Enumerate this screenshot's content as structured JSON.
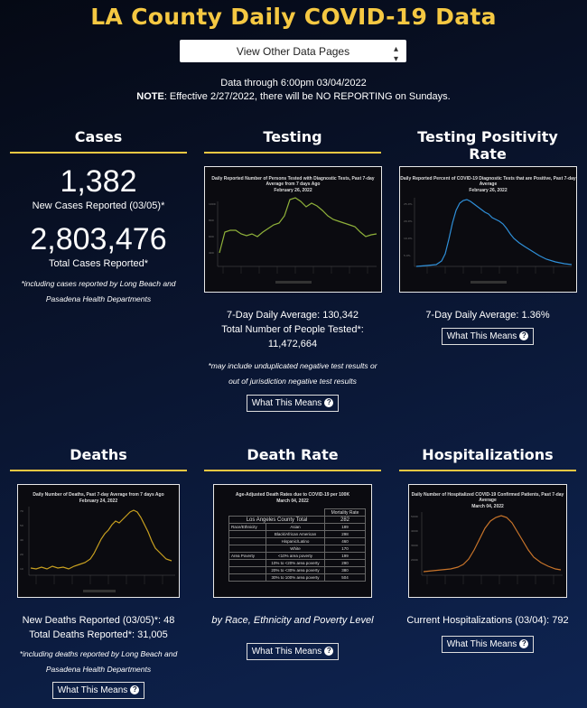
{
  "page": {
    "title": "LA County Daily COVID-19 Data",
    "select_label": "View Other Data Pages",
    "data_through": "Data through 6:00pm 03/04/2022",
    "note_label": "NOTE",
    "note_text": ": Effective 2/27/2022, there will be NO REPORTING on Sundays."
  },
  "cases": {
    "heading": "Cases",
    "new_value": "1,382",
    "new_label": "New Cases Reported (03/05)*",
    "total_value": "2,803,476",
    "total_label": "Total Cases Reported*",
    "footnote": "*including cases reported by Long Beach and Pasadena Health Departments"
  },
  "testing": {
    "heading": "Testing",
    "chart_title": "Daily Reported Number of Persons Tested with Diagnostic Tests, Past 7-day Average from 7 days Ago",
    "chart_date": "February 26, 2022",
    "avg": "7-Day Daily Average: 130,342",
    "total": "Total Number of People Tested*: 11,472,664",
    "footnote": "*may include unduplicated negative test results or out of jurisdiction negative test results",
    "button": "What This Means",
    "line_color": "#8fb13a"
  },
  "positivity": {
    "heading": "Testing Positivity Rate",
    "chart_title": "Daily Reported Percent of COVID-19 Diagnostic Tests that are Positive, Past 7-day Average",
    "chart_date": "February 26, 2022",
    "avg": "7-Day Daily Average: 1.36%",
    "button": "What This Means",
    "line_color": "#2f8fd8"
  },
  "deaths": {
    "heading": "Deaths",
    "chart_title": "Daily Number of Deaths, Past 7-day Average from 7 days Ago",
    "chart_date": "February 24, 2022",
    "new": "New Deaths Reported (03/05)*: 48",
    "total": "Total Deaths Reported*: 31,005",
    "footnote": "*including deaths reported by Long Beach and Pasadena Health Departments",
    "button": "What This Means",
    "line_color": "#c8a020"
  },
  "death_rate": {
    "heading": "Death Rate",
    "chart_title": "Age-Adjusted Death Rates due to COVID-19 per 100K",
    "chart_date": "March 04, 2022",
    "col_header": "Mortality Rate",
    "county_label": "Los Angeles County Total",
    "county_value": "282",
    "rows": [
      {
        "group": "Race/Ethnicity",
        "name": "Asian",
        "value": "189"
      },
      {
        "group": "",
        "name": "Black/African American",
        "value": "298"
      },
      {
        "group": "",
        "name": "Hispanic/Latino",
        "value": "460"
      },
      {
        "group": "",
        "name": "White",
        "value": "170"
      },
      {
        "group": "Area Poverty",
        "name": "<10% area poverty",
        "value": "199"
      },
      {
        "group": "",
        "name": "10% to <20% area poverty",
        "value": "290"
      },
      {
        "group": "",
        "name": "20% to <30% area poverty",
        "value": "380"
      },
      {
        "group": "",
        "name": "30% to 100% area poverty",
        "value": "504"
      }
    ],
    "caption": "by Race, Ethnicity and Poverty Level",
    "button": "What This Means"
  },
  "hospital": {
    "heading": "Hospitalizations",
    "chart_title": "Daily Number of Hospitalized COVID-19 Confirmed Patients, Past 7-day Average",
    "chart_date": "March 04, 2022",
    "current": "Current Hospitalizations (03/04): 792",
    "button": "What This Means",
    "line_color": "#c8742a"
  }
}
